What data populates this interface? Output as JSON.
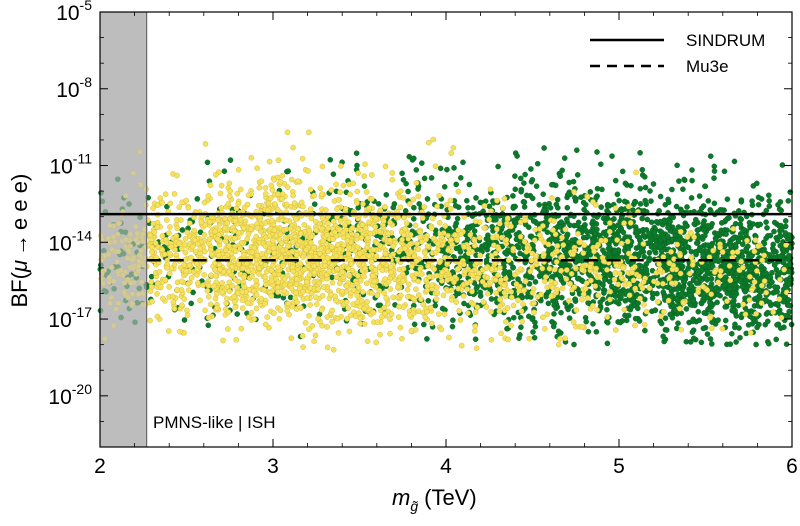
{
  "chart_data": {
    "type": "scatter",
    "title": "",
    "xlabel": "m_g~ (TeV)",
    "xlabel_parts": {
      "symbol": "m",
      "subscript": "g̃",
      "unit": "(TeV)"
    },
    "ylabel": "BF(μ → e e e)",
    "ylabel_parts": {
      "prefix": "BF(",
      "mu": "μ",
      "arrow": "→",
      "rest": "e e e)"
    },
    "xlim": [
      2,
      6
    ],
    "ylim_log10": [
      -22,
      -5
    ],
    "yscale": "log",
    "x_ticks": [
      "2",
      "3",
      "4",
      "5",
      "6"
    ],
    "y_ticks": [
      {
        "base": "10",
        "exp": "-5",
        "log": -5
      },
      {
        "base": "10",
        "exp": "-8",
        "log": -8
      },
      {
        "base": "10",
        "exp": "-11",
        "log": -11
      },
      {
        "base": "10",
        "exp": "-14",
        "log": -14
      },
      {
        "base": "10",
        "exp": "-17",
        "log": -17
      },
      {
        "base": "10",
        "exp": "-20",
        "log": -20
      }
    ],
    "excluded_region": {
      "x_from": 2.0,
      "x_to": 2.27,
      "color": "#bdbdbd"
    },
    "reference_lines": [
      {
        "name": "SINDRUM",
        "value_log10": -12.9,
        "x_from": 2.0,
        "x_to": 6.0,
        "style": "solid"
      },
      {
        "name": "Mu3e",
        "value_log10": -14.7,
        "x_from": 2.27,
        "x_to": 6.0,
        "style": "dashed"
      }
    ],
    "series": [
      {
        "name": "green points",
        "color": "#0b7a2a",
        "density_profile": [
          {
            "x": 2.0,
            "center_log10": -14.9,
            "spread": 1.3,
            "weight": 0.5
          },
          {
            "x": 2.5,
            "center_log10": -14.7,
            "spread": 1.3,
            "weight": 0.35
          },
          {
            "x": 3.0,
            "center_log10": -14.4,
            "spread": 1.4,
            "weight": 0.4
          },
          {
            "x": 3.5,
            "center_log10": -14.3,
            "spread": 1.5,
            "weight": 0.7
          },
          {
            "x": 4.0,
            "center_log10": -14.3,
            "spread": 1.5,
            "weight": 1.3
          },
          {
            "x": 4.5,
            "center_log10": -14.5,
            "spread": 1.5,
            "weight": 2.2
          },
          {
            "x": 5.0,
            "center_log10": -14.7,
            "spread": 1.4,
            "weight": 3.0
          },
          {
            "x": 5.5,
            "center_log10": -14.9,
            "spread": 1.4,
            "weight": 3.4
          },
          {
            "x": 6.0,
            "center_log10": -15.1,
            "spread": 1.3,
            "weight": 3.4
          }
        ],
        "range_log10": [
          -18.0,
          -10.3
        ]
      },
      {
        "name": "yellow points",
        "color": "#f5e15a",
        "density_profile": [
          {
            "x": 2.0,
            "center_log10": -14.8,
            "spread": 1.1,
            "weight": 0.6
          },
          {
            "x": 2.5,
            "center_log10": -14.6,
            "spread": 1.2,
            "weight": 1.2
          },
          {
            "x": 3.0,
            "center_log10": -14.4,
            "spread": 1.4,
            "weight": 2.2
          },
          {
            "x": 3.5,
            "center_log10": -14.6,
            "spread": 1.4,
            "weight": 1.8
          },
          {
            "x": 4.0,
            "center_log10": -14.9,
            "spread": 1.3,
            "weight": 0.9
          },
          {
            "x": 4.5,
            "center_log10": -15.1,
            "spread": 1.2,
            "weight": 0.55
          },
          {
            "x": 5.0,
            "center_log10": -15.2,
            "spread": 1.1,
            "weight": 0.35
          },
          {
            "x": 5.5,
            "center_log10": -15.3,
            "spread": 1.0,
            "weight": 0.22
          },
          {
            "x": 6.0,
            "center_log10": -15.4,
            "spread": 1.0,
            "weight": 0.12
          }
        ],
        "range_log10": [
          -18.3,
          -9.3
        ]
      }
    ],
    "legend": {
      "placement": "top-right",
      "entries": [
        {
          "label": "SINDRUM",
          "style": "solid"
        },
        {
          "label": "Mu3e",
          "style": "dashed"
        }
      ]
    },
    "annotation": "PMNS-like | ISH",
    "annotation_placement": "bottom-left",
    "grid": false
  }
}
